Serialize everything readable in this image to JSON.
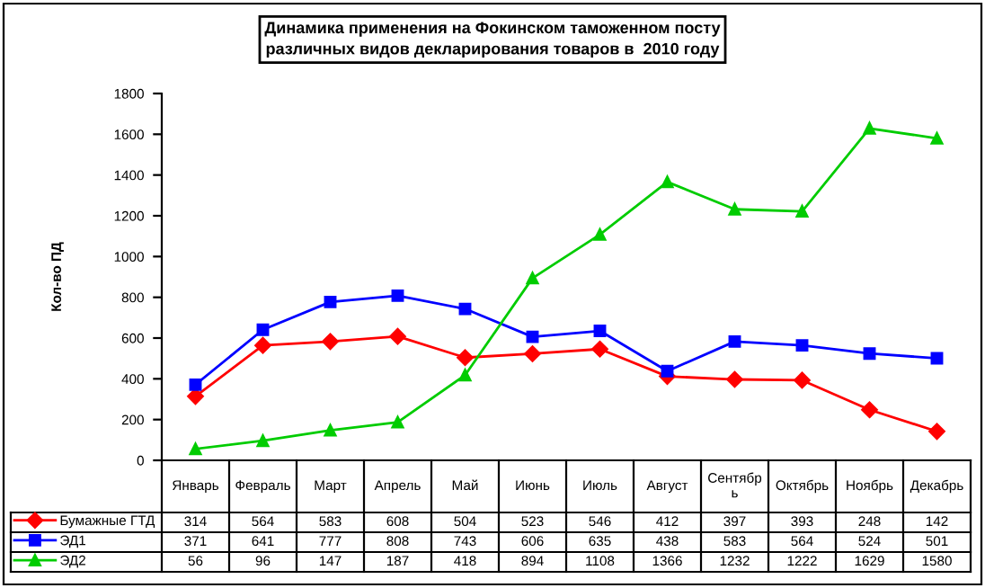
{
  "chart_data": {
    "type": "line",
    "title": "Динамика применения на Фокинском таможенном посту\nразличных видов декларирования товаров в  2010 году",
    "ylabel": "Кол-во ПД",
    "categories": [
      "Январь",
      "Февраль",
      "Март",
      "Апрель",
      "Май",
      "Июнь",
      "Июль",
      "Август",
      "Сентябр\nь",
      "Октябрь",
      "Ноябрь",
      "Декабрь"
    ],
    "series": [
      {
        "name": "Бумажные ГТД",
        "color": "#ff0000",
        "marker": "diamond",
        "values": [
          314,
          564,
          583,
          608,
          504,
          523,
          546,
          412,
          397,
          393,
          248,
          142
        ]
      },
      {
        "name": "ЭД1",
        "color": "#0000ff",
        "marker": "square",
        "values": [
          371,
          641,
          777,
          808,
          743,
          606,
          635,
          438,
          583,
          564,
          524,
          501
        ]
      },
      {
        "name": "ЭД2",
        "color": "#00cc00",
        "marker": "triangle",
        "values": [
          56,
          96,
          147,
          187,
          418,
          894,
          1108,
          1366,
          1232,
          1222,
          1629,
          1580
        ]
      }
    ],
    "ylim": [
      0,
      1800
    ],
    "yticks": [
      0,
      200,
      400,
      600,
      800,
      1000,
      1200,
      1400,
      1600,
      1800
    ],
    "data_labels": true,
    "legend": "bottom",
    "grid": false
  }
}
